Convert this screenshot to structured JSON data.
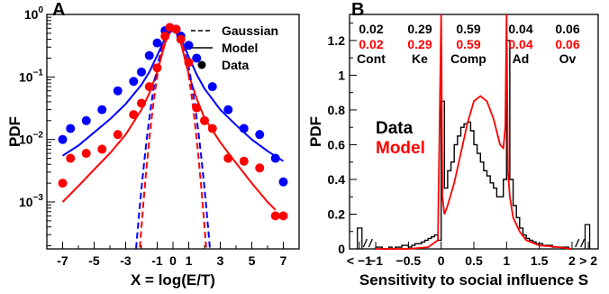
{
  "figure": {
    "panels": [
      "A",
      "B"
    ]
  },
  "chart_data": [
    {
      "panel": "A",
      "type": "scatter",
      "title": "",
      "xlabel": "X = log(E/T)",
      "ylabel": "PDF",
      "xlim": [
        -8,
        8
      ],
      "ylim_log10": [
        -3.75,
        0
      ],
      "yscale": "log",
      "x_ticks": [
        "-7",
        "-5",
        "-3",
        "-1",
        "0",
        "1",
        "3",
        "5",
        "7"
      ],
      "y_ticks": [
        "10^0",
        "10^-1",
        "10^-2",
        "10^-3"
      ],
      "y_tick_values": [
        1,
        0.1,
        0.01,
        0.001
      ],
      "y_tick_base": "10",
      "y_tick_exponents": [
        "0",
        "−1",
        "−2",
        "−3"
      ],
      "legend": {
        "placement": "top-right",
        "entries": [
          {
            "label": "Gaussian",
            "style": "dashed"
          },
          {
            "label": "Model",
            "style": "solid"
          },
          {
            "label": "Data",
            "style": "dot"
          }
        ]
      },
      "colors": {
        "blue": "#0000ff",
        "red": "#ff0000"
      },
      "series": [
        {
          "color": "blue",
          "kind": "data",
          "x": [
            -7,
            -6.5,
            -5.5,
            -4.5,
            -3.5,
            -2.5,
            -2.0,
            -1.5,
            -1.0,
            -0.5,
            -0.2,
            0.2,
            0.5,
            1.0,
            1.5,
            2.5,
            3.5,
            4.5,
            5.5,
            6.5,
            7
          ],
          "y": [
            0.01,
            0.015,
            0.02,
            0.03,
            0.06,
            0.085,
            0.12,
            0.22,
            0.35,
            0.55,
            0.6,
            0.58,
            0.45,
            0.32,
            0.2,
            0.07,
            0.03,
            0.015,
            0.012,
            0.005,
            0.0021
          ]
        },
        {
          "color": "red",
          "kind": "data",
          "x": [
            -7,
            -6.5,
            -5.5,
            -4.5,
            -3.5,
            -2.5,
            -2.0,
            -1.5,
            -1.0,
            -0.5,
            -0.2,
            0.2,
            0.5,
            1.0,
            1.5,
            2.0,
            2.5,
            3.5,
            4.5,
            5.5,
            6.5,
            7
          ],
          "y": [
            0.002,
            0.005,
            0.006,
            0.007,
            0.012,
            0.025,
            0.038,
            0.07,
            0.14,
            0.45,
            0.62,
            0.58,
            0.4,
            0.17,
            0.032,
            0.02,
            0.015,
            0.005,
            0.0045,
            0.0035,
            0.0006,
            0.0006
          ]
        },
        {
          "color": "blue",
          "kind": "model",
          "x": [
            -7,
            -6,
            -5,
            -4,
            -3,
            -2,
            -1.5,
            -1,
            -0.5,
            0,
            0.5,
            1,
            1.5,
            2,
            3,
            4,
            5,
            6,
            7
          ],
          "y": [
            0.0055,
            0.008,
            0.013,
            0.021,
            0.037,
            0.075,
            0.12,
            0.22,
            0.42,
            0.62,
            0.42,
            0.21,
            0.11,
            0.065,
            0.03,
            0.017,
            0.01,
            0.0065,
            0.0045
          ]
        },
        {
          "color": "red",
          "kind": "model",
          "x": [
            -7,
            -6,
            -5,
            -4,
            -3,
            -2,
            -1.5,
            -1,
            -0.5,
            0,
            0.5,
            1,
            1.5,
            2,
            3,
            4,
            5,
            6,
            6.5
          ],
          "y": [
            0.001,
            0.0018,
            0.0033,
            0.006,
            0.012,
            0.03,
            0.055,
            0.12,
            0.35,
            0.65,
            0.35,
            0.11,
            0.045,
            0.022,
            0.009,
            0.0042,
            0.002,
            0.001,
            0.00075
          ]
        },
        {
          "color": "blue",
          "kind": "gaussian",
          "peak": 0.62,
          "sigma": 0.58
        },
        {
          "color": "red",
          "kind": "gaussian",
          "peak": 0.65,
          "sigma": 0.52
        }
      ]
    },
    {
      "panel": "B",
      "type": "bar",
      "title": "",
      "xlabel": "Sensitivity to social influence S",
      "ylabel": "PDF",
      "xlim": [
        -1.4,
        2.4
      ],
      "ylim": [
        0,
        1.35
      ],
      "x_ticks": [
        "< −1",
        "−1",
        "−0.5",
        "0",
        "0.5",
        "1",
        "1.5",
        "2",
        "> 2"
      ],
      "y_ticks": [
        "0",
        "0.2",
        "0.4",
        "0.6",
        "0.8",
        "1",
        "1.2"
      ],
      "legend": {
        "placement": "center-left",
        "entries": [
          {
            "label": "Data",
            "color": "#000000"
          },
          {
            "label": "Model",
            "color": "#ff0000"
          }
        ]
      },
      "categories": [
        {
          "label": "Cont",
          "data": "0.02",
          "model": "0.02"
        },
        {
          "label": "Ke",
          "data": "0.29",
          "model": "0.29"
        },
        {
          "label": "Comp",
          "data": "0.59",
          "model": "0.59"
        },
        {
          "label": "Ad",
          "data": "0.04",
          "model": "0.04"
        },
        {
          "label": "Ov",
          "data": "0.06",
          "model": "0.06"
        }
      ],
      "data_histogram": {
        "bin_width": 0.05,
        "x_start": -1.0,
        "values": [
          0.01,
          0.01,
          0.0,
          0.0,
          0.01,
          0.0,
          0.01,
          0.01,
          0.02,
          0.02,
          0.01,
          0.02,
          0.03,
          0.03,
          0.04,
          0.05,
          0.06,
          0.07,
          0.08,
          0.05,
          0.85,
          0.35,
          0.45,
          0.5,
          0.6,
          0.65,
          0.7,
          0.72,
          0.73,
          0.68,
          0.6,
          0.55,
          0.5,
          0.45,
          0.42,
          0.38,
          0.35,
          0.3,
          0.3,
          0.4,
          1.2,
          0.4,
          0.25,
          0.18,
          0.12,
          0.08,
          0.06,
          0.05,
          0.04,
          0.03,
          0.03,
          0.02,
          0.02,
          0.02,
          0.01,
          0.01,
          0.01,
          0.01,
          0.01,
          0.0
        ],
        "below_minus1": 0.12,
        "above_2": 0.14
      },
      "model_curve": {
        "x": [
          -1.0,
          -0.5,
          -0.2,
          -0.05,
          0.0,
          0.02,
          0.05,
          0.1,
          0.2,
          0.3,
          0.4,
          0.5,
          0.6,
          0.7,
          0.8,
          0.9,
          0.95,
          0.98,
          1.0,
          1.02,
          1.05,
          1.1,
          1.2,
          1.3,
          1.5,
          1.8,
          2.0
        ],
        "y": [
          0.0,
          0.0,
          0.01,
          0.05,
          1.35,
          0.3,
          0.2,
          0.25,
          0.38,
          0.55,
          0.72,
          0.85,
          0.88,
          0.85,
          0.75,
          0.6,
          0.58,
          0.7,
          1.35,
          0.45,
          0.3,
          0.18,
          0.1,
          0.05,
          0.02,
          0.01,
          0.0
        ]
      }
    }
  ]
}
